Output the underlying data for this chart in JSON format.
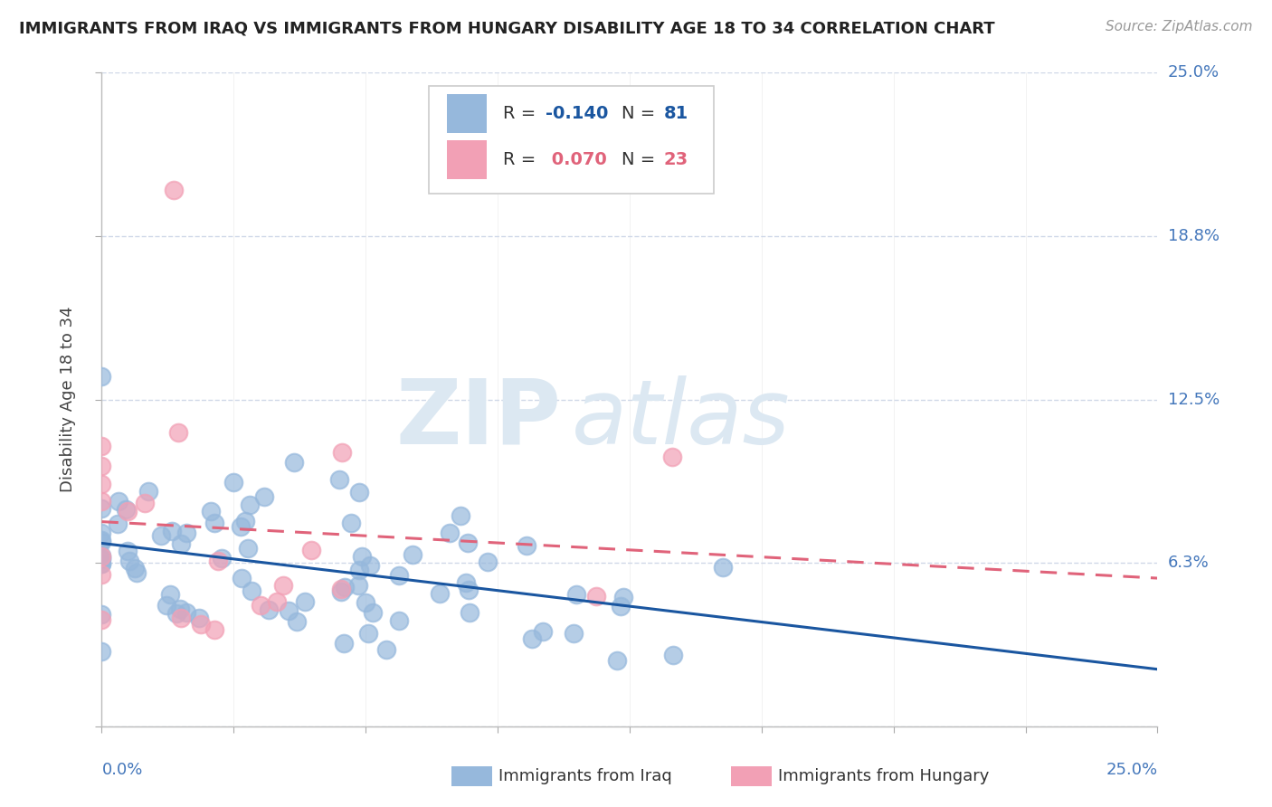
{
  "title": "IMMIGRANTS FROM IRAQ VS IMMIGRANTS FROM HUNGARY DISABILITY AGE 18 TO 34 CORRELATION CHART",
  "source": "Source: ZipAtlas.com",
  "ylabel": "Disability Age 18 to 34",
  "xmin": 0.0,
  "xmax": 0.25,
  "ymin": 0.0,
  "ymax": 0.25,
  "ytick_vals": [
    0.0,
    0.0625,
    0.125,
    0.1875,
    0.25
  ],
  "ytick_labels": [
    "",
    "6.3%",
    "12.5%",
    "18.8%",
    "25.0%"
  ],
  "xtick_label_left": "0.0%",
  "xtick_label_right": "25.0%",
  "iraq_R": -0.14,
  "iraq_N": 81,
  "hungary_R": 0.07,
  "hungary_N": 23,
  "iraq_color": "#96b8dc",
  "hungary_color": "#f2a0b5",
  "iraq_line_color": "#1a56a0",
  "hungary_line_color": "#e0637a",
  "iraq_R_color": "#1a56a0",
  "hungary_R_color": "#e0637a",
  "grid_color": "#d0d8e8",
  "background_color": "#ffffff",
  "legend_text_color": "#333333",
  "title_color": "#222222",
  "source_color": "#999999",
  "axis_label_color": "#4477bb",
  "ylabel_color": "#444444",
  "watermark_color": "#dce8f2"
}
